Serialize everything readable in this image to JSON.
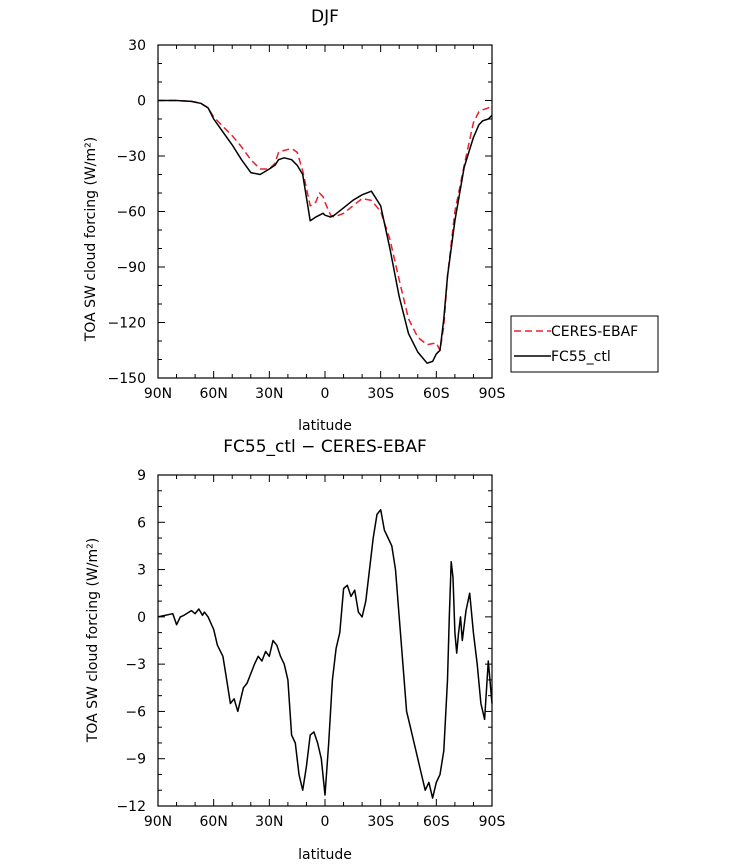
{
  "chart_data": [
    {
      "type": "line",
      "title": "DJF",
      "xlabel": "latitude",
      "ylabel": "TOA SW cloud forcing (W/m²)",
      "ylim": [
        -150,
        30
      ],
      "yticks": [
        30,
        0,
        -30,
        -60,
        -90,
        -120,
        -150
      ],
      "yticklabels": [
        "30",
        "0",
        "−30",
        "−60",
        "−90",
        "−120",
        "−150"
      ],
      "xlim": [
        90,
        -90
      ],
      "xticks": [
        90,
        60,
        30,
        0,
        -30,
        -60,
        -90
      ],
      "xticklabels": [
        "90N",
        "60N",
        "30N",
        "0",
        "30S",
        "60S",
        "90S"
      ],
      "legend": "outside-right",
      "series": [
        {
          "name": "CERES-EBAF",
          "color": "#e8202a",
          "dash": "dashed",
          "x": [
            90,
            80,
            72,
            67,
            63,
            60,
            55,
            50,
            45,
            40,
            35,
            30,
            27,
            25,
            22,
            18,
            15,
            12,
            8,
            5,
            3,
            1,
            0,
            -3,
            -5,
            -10,
            -15,
            -20,
            -25,
            -30,
            -35,
            -40,
            -45,
            -50,
            -55,
            -60,
            -62,
            -64,
            -66,
            -70,
            -75,
            -80,
            -83,
            -85,
            -88,
            -90
          ],
          "y": [
            0,
            0,
            -0.5,
            -1.5,
            -4,
            -9,
            -14,
            -19,
            -25,
            -32,
            -37,
            -37,
            -34,
            -28,
            -27,
            -26,
            -28,
            -38,
            -57,
            -55,
            -50,
            -52,
            -55,
            -62,
            -63,
            -61,
            -57,
            -53,
            -54,
            -60,
            -75,
            -97,
            -118,
            -128,
            -132,
            -131,
            -135,
            -122,
            -95,
            -60,
            -35,
            -12,
            -6,
            -5,
            -4,
            -2
          ]
        },
        {
          "name": "FC55_ctl",
          "color": "#000000",
          "dash": "solid",
          "x": [
            90,
            80,
            72,
            67,
            63,
            60,
            55,
            50,
            45,
            40,
            35,
            30,
            27,
            25,
            22,
            18,
            15,
            12,
            8,
            5,
            3,
            1,
            0,
            -3,
            -5,
            -10,
            -15,
            -20,
            -25,
            -30,
            -35,
            -40,
            -45,
            -50,
            -55,
            -58,
            -60,
            -62,
            -64,
            -66,
            -70,
            -75,
            -80,
            -83,
            -85,
            -88,
            -90
          ],
          "y": [
            0,
            0,
            -0.5,
            -1.5,
            -4,
            -10,
            -17,
            -24,
            -32,
            -39,
            -40,
            -37,
            -35,
            -32,
            -31,
            -32,
            -35,
            -40,
            -65,
            -63,
            -62,
            -61,
            -62,
            -63,
            -62,
            -58,
            -54,
            -51,
            -49,
            -57,
            -80,
            -106,
            -126,
            -136,
            -142,
            -141,
            -137,
            -135,
            -118,
            -95,
            -65,
            -36,
            -20,
            -13,
            -11,
            -10,
            -8
          ]
        }
      ]
    },
    {
      "type": "line",
      "title": "FC55_ctl − CERES-EBAF",
      "xlabel": "latitude",
      "ylabel": "TOA SW cloud forcing (W/m²)",
      "ylim": [
        -12,
        9
      ],
      "yticks": [
        9,
        6,
        3,
        0,
        -3,
        -6,
        -9,
        -12
      ],
      "yticklabels": [
        "9",
        "6",
        "3",
        "0",
        "−3",
        "−6",
        "−9",
        "−12"
      ],
      "xlim": [
        90,
        -90
      ],
      "xticks": [
        90,
        60,
        30,
        0,
        -30,
        -60,
        -90
      ],
      "xticklabels": [
        "90N",
        "60N",
        "30N",
        "0",
        "30S",
        "60S",
        "90S"
      ],
      "series": [
        {
          "name": "",
          "color": "#000000",
          "dash": "solid",
          "x": [
            90,
            82,
            80,
            78,
            76,
            72,
            70,
            68,
            66,
            65,
            63,
            60,
            58,
            55,
            53,
            51,
            49,
            47,
            44,
            42,
            38,
            36,
            34,
            32,
            30,
            28,
            26,
            24,
            22,
            20,
            18,
            16,
            14,
            12,
            10,
            8,
            6,
            4,
            2,
            0,
            -2,
            -4,
            -6,
            -8,
            -10,
            -12,
            -14,
            -16,
            -18,
            -20,
            -22,
            -24,
            -26,
            -28,
            -30,
            -32,
            -34,
            -36,
            -38,
            -40,
            -42,
            -44,
            -46,
            -48,
            -50,
            -52,
            -54,
            -56,
            -58,
            -60,
            -62,
            -64,
            -66,
            -67,
            -68,
            -69,
            -70,
            -71,
            -72,
            -73,
            -74,
            -76,
            -78,
            -80,
            -82,
            -84,
            -86,
            -88,
            -90
          ],
          "y": [
            0,
            0.2,
            -0.5,
            0,
            0.1,
            0.4,
            0.2,
            0.5,
            0.1,
            0.3,
            0,
            -0.8,
            -1.8,
            -2.5,
            -4,
            -5.5,
            -5.2,
            -6,
            -4.5,
            -4.2,
            -3,
            -2.5,
            -2.8,
            -2.2,
            -2.5,
            -1.5,
            -1.8,
            -2.5,
            -3,
            -4,
            -7.5,
            -8,
            -10,
            -11,
            -9.5,
            -7.5,
            -7.3,
            -8,
            -9,
            -11.3,
            -8,
            -4,
            -2,
            -1,
            1.8,
            2,
            1.3,
            1.7,
            0.3,
            0,
            1,
            3,
            5,
            6.5,
            6.8,
            5.5,
            5,
            4.5,
            3,
            0,
            -3,
            -6,
            -7,
            -8,
            -9,
            -10,
            -11,
            -10.5,
            -11.5,
            -10.5,
            -10,
            -8.5,
            -4,
            0,
            3.5,
            2.5,
            -1,
            -2.3,
            -1,
            0,
            -1.5,
            0.4,
            1.5,
            -1,
            -3,
            -5.5,
            -6.5,
            -2.8,
            -5.5
          ]
        }
      ]
    }
  ]
}
